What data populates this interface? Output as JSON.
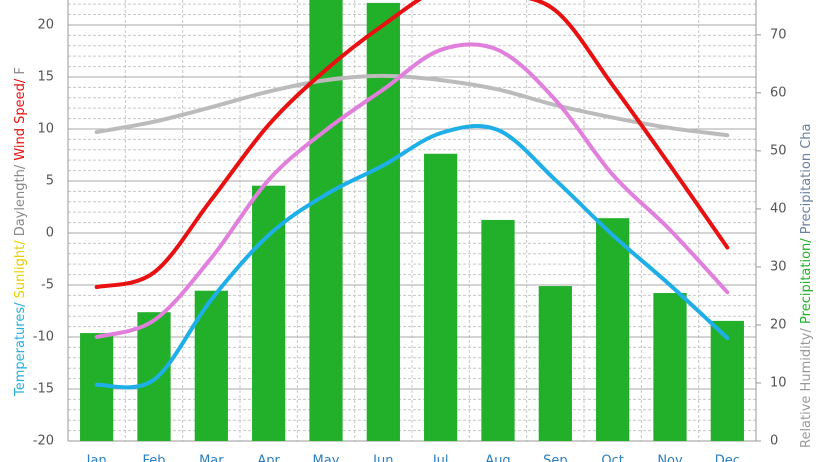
{
  "chart_data": {
    "type": "bar_line",
    "categories": [
      "Jan",
      "Feb",
      "Mar",
      "Apr",
      "May",
      "Jun",
      "Jul",
      "Aug",
      "Sep",
      "Oct",
      "Nov",
      "Dec"
    ],
    "ylabel": [
      {
        "text": "Temperatures/",
        "color": "#29aee0"
      },
      {
        "text": " Sunlight/",
        "color": "#e6d000"
      },
      {
        "text": " Daylength/",
        "color": "#888888"
      },
      {
        "text": " Wind Speed/",
        "color": "#e81010"
      },
      {
        "text": " F",
        "color": "#888888"
      }
    ],
    "y2label": [
      {
        "text": "Relative Humidity/",
        "color": "#999999"
      },
      {
        "text": " Precipitation/",
        "color": "#22b02a"
      },
      {
        "text": " Precipitation Cha",
        "color": "#6a7fa0"
      }
    ],
    "ylim": [
      -20,
      22.4
    ],
    "yticks": [
      -20,
      -15,
      -10,
      -5,
      0,
      5,
      10,
      15,
      20
    ],
    "y2lim": [
      0,
      76
    ],
    "y2ticks": [
      0,
      10,
      20,
      30,
      40,
      50,
      60,
      70
    ],
    "grid": true,
    "bars": {
      "color": "#22b02a",
      "axis": "y2",
      "values": [
        18.6,
        22.2,
        25.9,
        44,
        78,
        75.5,
        49.5,
        38.1,
        26.7,
        38.4,
        25.5,
        20.7
      ]
    },
    "series": [
      {
        "color": "#bbbbbb",
        "values": [
          9.7,
          10.7,
          12.1,
          13.6,
          14.7,
          15.1,
          14.7,
          13.8,
          12.3,
          11.1,
          10.1,
          9.4
        ]
      },
      {
        "color": "#e81010",
        "values": [
          -5.2,
          -3.8,
          3.2,
          10.4,
          15.7,
          20,
          23.4,
          23,
          21.4,
          14.2,
          6.5,
          -1.4
        ]
      },
      {
        "color": "#e07fdc",
        "values": [
          -10,
          -8.4,
          -2.4,
          5.1,
          9.9,
          13.8,
          17.6,
          17.6,
          12.8,
          5.6,
          0.3,
          -5.7
        ]
      },
      {
        "color": "#1eaee8",
        "values": [
          -14.6,
          -14.1,
          -6.4,
          -0.2,
          3.7,
          6.5,
          9.6,
          9.9,
          5.1,
          -0.2,
          -5,
          -10.1
        ]
      }
    ]
  }
}
